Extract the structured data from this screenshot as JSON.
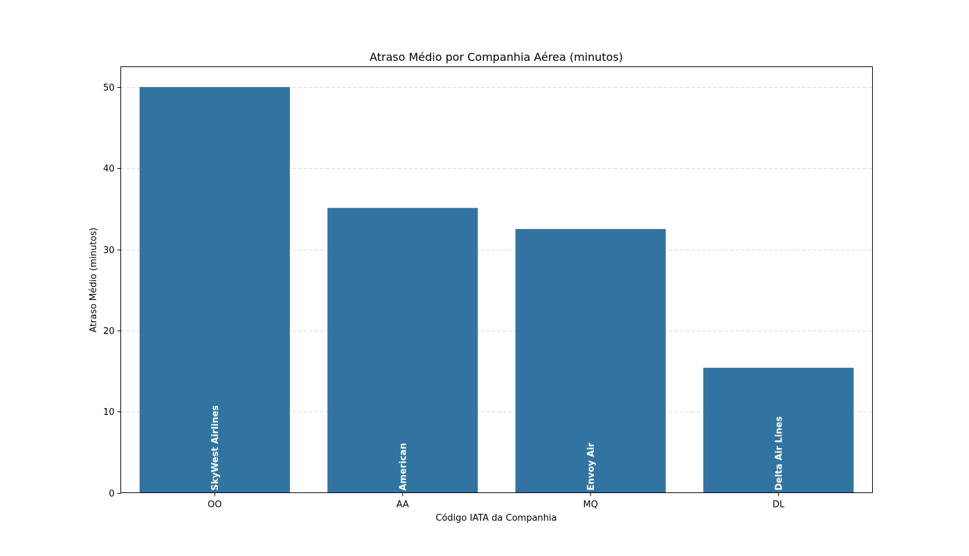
{
  "chart_data": {
    "type": "bar",
    "title": "Atraso Médio por Companhia Aérea (minutos)",
    "xlabel": "Código IATA da Companhia",
    "ylabel": "Atraso Médio (minutos)",
    "categories": [
      "OO",
      "AA",
      "MQ",
      "DL"
    ],
    "values": [
      50.0,
      35.1,
      32.5,
      15.4
    ],
    "bar_labels": [
      "SkyWest Airlines",
      "American",
      "Envoy Air",
      "Delta Air Lines"
    ],
    "ylim": [
      0,
      52.5
    ],
    "yticks": [
      0,
      10,
      20,
      30,
      40,
      50
    ],
    "grid": "y, dashed",
    "bar_color": "#3274a1",
    "grid_color": "#d9d9d9"
  }
}
